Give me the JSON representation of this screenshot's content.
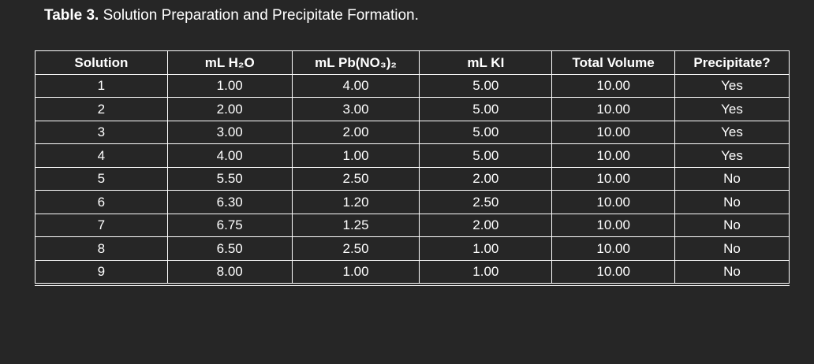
{
  "caption": {
    "label": "Table 3.",
    "text": "Solution Preparation and Precipitate Formation."
  },
  "table": {
    "headers": [
      "Solution",
      "mL H₂O",
      "mL Pb(NO₃)₂",
      "mL KI",
      "Total Volume",
      "Precipitate?"
    ],
    "rows": [
      [
        "1",
        "1.00",
        "4.00",
        "5.00",
        "10.00",
        "Yes"
      ],
      [
        "2",
        "2.00",
        "3.00",
        "5.00",
        "10.00",
        "Yes"
      ],
      [
        "3",
        "3.00",
        "2.00",
        "5.00",
        "10.00",
        "Yes"
      ],
      [
        "4",
        "4.00",
        "1.00",
        "5.00",
        "10.00",
        "Yes"
      ],
      [
        "5",
        "5.50",
        "2.50",
        "2.00",
        "10.00",
        "No"
      ],
      [
        "6",
        "6.30",
        "1.20",
        "2.50",
        "10.00",
        "No"
      ],
      [
        "7",
        "6.75",
        "1.25",
        "2.00",
        "10.00",
        "No"
      ],
      [
        "8",
        "6.50",
        "2.50",
        "1.00",
        "10.00",
        "No"
      ],
      [
        "9",
        "8.00",
        "1.00",
        "1.00",
        "10.00",
        "No"
      ]
    ]
  }
}
